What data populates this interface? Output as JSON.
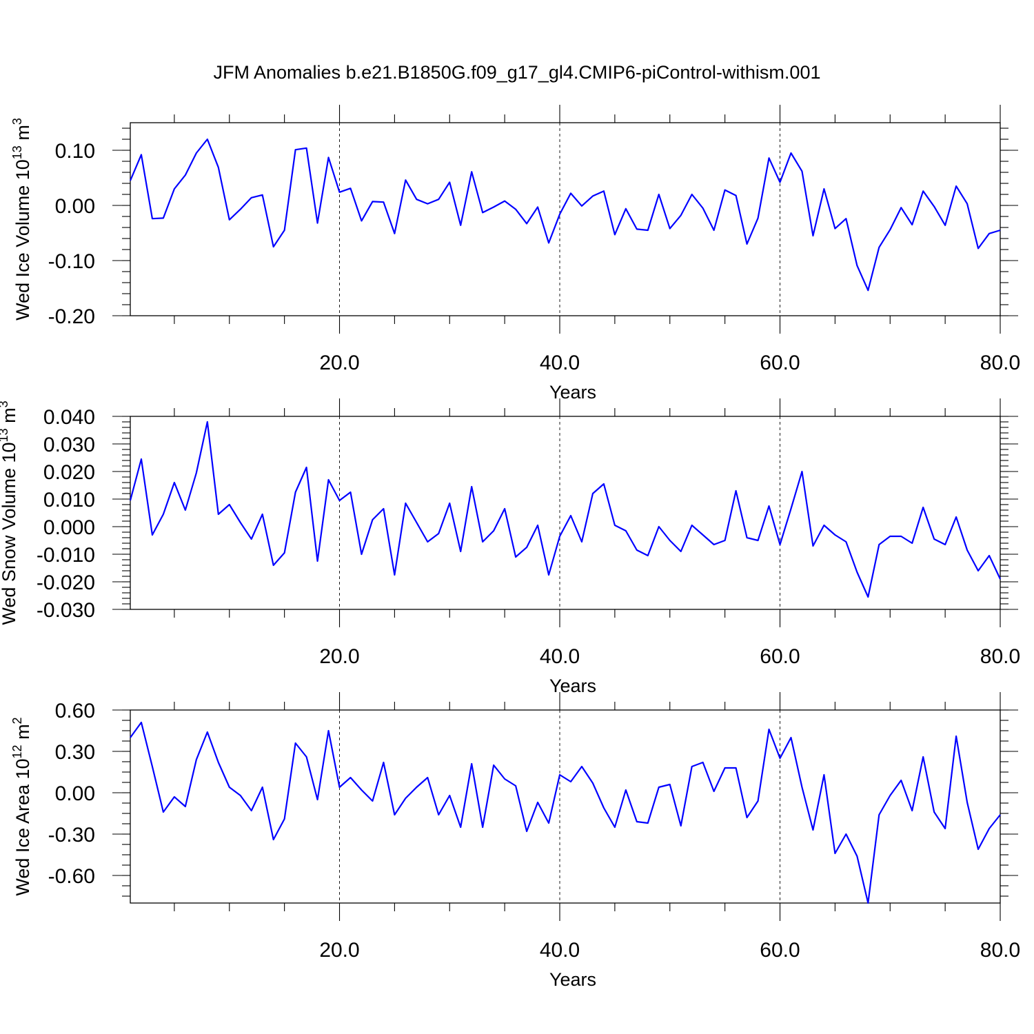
{
  "colors": {
    "series": "#0000ff",
    "axes": "#000000",
    "background": "#ffffff"
  },
  "chart_data": {
    "title": "JFM Anomalies b.e21.B1850G.f09_g17_gl4.CMIP6-piControl-withism.001",
    "panels": [
      {
        "type": "line",
        "ylabel_base": "Wed Ice Volume 10",
        "ylabel_exp": "13",
        "ylabel_unit": " m",
        "ylabel_unit_exp": "3",
        "xlabel": "Years",
        "xlim": [
          1,
          80
        ],
        "ylim": [
          -0.2,
          0.15
        ],
        "xticks": [
          20,
          40,
          60,
          80
        ],
        "xtick_labels": [
          "20.0",
          "40.0",
          "60.0",
          "80.0"
        ],
        "yticks": [
          -0.2,
          -0.1,
          0.0,
          0.1
        ],
        "ytick_labels": [
          "-0.20",
          "-0.10",
          "0.00",
          "0.10"
        ],
        "y_minor_step": 0.02,
        "x_grid": true,
        "x": [
          1,
          2,
          3,
          4,
          5,
          6,
          7,
          8,
          9,
          10,
          11,
          12,
          13,
          14,
          15,
          16,
          17,
          18,
          19,
          20,
          21,
          22,
          23,
          24,
          25,
          26,
          27,
          28,
          29,
          30,
          31,
          32,
          33,
          34,
          35,
          36,
          37,
          38,
          39,
          40,
          41,
          42,
          43,
          44,
          45,
          46,
          47,
          48,
          49,
          50,
          51,
          52,
          53,
          54,
          55,
          56,
          57,
          58,
          59,
          60,
          61,
          62,
          63,
          64,
          65,
          66,
          67,
          68,
          69,
          70,
          71,
          72,
          73,
          74,
          75,
          76,
          77,
          78,
          79,
          80
        ],
        "values": [
          0.045,
          0.092,
          -0.024,
          -0.023,
          0.03,
          0.055,
          0.095,
          0.12,
          0.069,
          -0.026,
          -0.007,
          0.014,
          0.019,
          -0.075,
          -0.045,
          0.101,
          0.104,
          -0.032,
          0.087,
          0.024,
          0.031,
          -0.028,
          0.007,
          0.006,
          -0.051,
          0.046,
          0.011,
          0.003,
          0.011,
          0.042,
          -0.036,
          0.061,
          -0.013,
          -0.003,
          0.008,
          -0.007,
          -0.033,
          -0.003,
          -0.068,
          -0.016,
          0.022,
          -0.001,
          0.017,
          0.026,
          -0.053,
          -0.006,
          -0.043,
          -0.045,
          0.02,
          -0.042,
          -0.018,
          0.02,
          -0.005,
          -0.045,
          0.028,
          0.018,
          -0.07,
          -0.023,
          0.086,
          0.042,
          0.095,
          0.062,
          -0.055,
          0.03,
          -0.042,
          -0.024,
          -0.109,
          -0.154,
          -0.076,
          -0.044,
          -0.004,
          -0.035,
          0.026,
          -0.002,
          -0.036,
          0.035,
          0.003,
          -0.078,
          -0.051,
          -0.045
        ]
      },
      {
        "type": "line",
        "ylabel_base": "Wed Snow Volume 10",
        "ylabel_exp": "13",
        "ylabel_unit": " m",
        "ylabel_unit_exp": "3",
        "xlabel": "Years",
        "xlim": [
          1,
          80
        ],
        "ylim": [
          -0.03,
          0.04
        ],
        "xticks": [
          20,
          40,
          60,
          80
        ],
        "xtick_labels": [
          "20.0",
          "40.0",
          "60.0",
          "80.0"
        ],
        "yticks": [
          -0.03,
          -0.02,
          -0.01,
          0.0,
          0.01,
          0.02,
          0.03,
          0.04
        ],
        "ytick_labels": [
          "-0.030",
          "-0.020",
          "-0.010",
          "0.000",
          "0.010",
          "0.020",
          "0.030",
          "0.040"
        ],
        "y_minor_step": 0.002,
        "x_grid": true,
        "x": [
          1,
          2,
          3,
          4,
          5,
          6,
          7,
          8,
          9,
          10,
          11,
          12,
          13,
          14,
          15,
          16,
          17,
          18,
          19,
          20,
          21,
          22,
          23,
          24,
          25,
          26,
          27,
          28,
          29,
          30,
          31,
          32,
          33,
          34,
          35,
          36,
          37,
          38,
          39,
          40,
          41,
          42,
          43,
          44,
          45,
          46,
          47,
          48,
          49,
          50,
          51,
          52,
          53,
          54,
          55,
          56,
          57,
          58,
          59,
          60,
          61,
          62,
          63,
          64,
          65,
          66,
          67,
          68,
          69,
          70,
          71,
          72,
          73,
          74,
          75,
          76,
          77,
          78,
          79,
          80
        ],
        "values": [
          0.0095,
          0.0245,
          -0.003,
          0.0045,
          0.016,
          0.006,
          0.0195,
          0.038,
          0.0045,
          0.008,
          0.0015,
          -0.0045,
          0.0045,
          -0.014,
          -0.0095,
          0.0125,
          0.0215,
          -0.0125,
          0.017,
          0.0095,
          0.0125,
          -0.01,
          0.0025,
          0.0065,
          -0.0175,
          0.0085,
          0.0015,
          -0.0055,
          -0.0025,
          0.0085,
          -0.009,
          0.0145,
          -0.0055,
          -0.0015,
          0.0065,
          -0.011,
          -0.0075,
          0.0005,
          -0.0175,
          -0.0035,
          0.004,
          -0.0055,
          0.012,
          0.0155,
          0.0005,
          -0.0015,
          -0.0085,
          -0.0105,
          0.0,
          -0.005,
          -0.009,
          0.0005,
          -0.003,
          -0.0065,
          -0.005,
          0.013,
          -0.004,
          -0.005,
          0.0075,
          -0.0065,
          0.0065,
          0.02,
          -0.007,
          0.0005,
          -0.003,
          -0.0055,
          -0.0165,
          -0.0255,
          -0.0065,
          -0.0035,
          -0.0035,
          -0.006,
          0.007,
          -0.0045,
          -0.0065,
          0.0035,
          -0.0085,
          -0.016,
          -0.0105,
          -0.019
        ]
      },
      {
        "type": "line",
        "ylabel_base": "Wed Ice Area 10",
        "ylabel_exp": "12",
        "ylabel_unit": " m",
        "ylabel_unit_exp": "2",
        "xlabel": "Years",
        "xlim": [
          1,
          80
        ],
        "ylim": [
          -0.8,
          0.6
        ],
        "xticks": [
          20,
          40,
          60,
          80
        ],
        "xtick_labels": [
          "20.0",
          "40.0",
          "60.0",
          "80.0"
        ],
        "yticks": [
          -0.6,
          -0.3,
          0.0,
          0.3,
          0.6
        ],
        "ytick_labels": [
          "-0.60",
          "-0.30",
          "0.00",
          "0.30",
          "0.60"
        ],
        "y_minor_step": 0.075,
        "x_grid": true,
        "x": [
          1,
          2,
          3,
          4,
          5,
          6,
          7,
          8,
          9,
          10,
          11,
          12,
          13,
          14,
          15,
          16,
          17,
          18,
          19,
          20,
          21,
          22,
          23,
          24,
          25,
          26,
          27,
          28,
          29,
          30,
          31,
          32,
          33,
          34,
          35,
          36,
          37,
          38,
          39,
          40,
          41,
          42,
          43,
          44,
          45,
          46,
          47,
          48,
          49,
          50,
          51,
          52,
          53,
          54,
          55,
          56,
          57,
          58,
          59,
          60,
          61,
          62,
          63,
          64,
          65,
          66,
          67,
          68,
          69,
          70,
          71,
          72,
          73,
          74,
          75,
          76,
          77,
          78,
          79,
          80
        ],
        "values": [
          0.4,
          0.51,
          0.19,
          -0.14,
          -0.03,
          -0.1,
          0.24,
          0.44,
          0.22,
          0.04,
          -0.02,
          -0.13,
          0.04,
          -0.34,
          -0.19,
          0.36,
          0.26,
          -0.05,
          0.45,
          0.04,
          0.11,
          0.02,
          -0.06,
          0.22,
          -0.16,
          -0.04,
          0.04,
          0.11,
          -0.16,
          -0.02,
          -0.25,
          0.21,
          -0.25,
          0.2,
          0.1,
          0.05,
          -0.28,
          -0.07,
          -0.22,
          0.13,
          0.08,
          0.19,
          0.07,
          -0.11,
          -0.25,
          0.02,
          -0.21,
          -0.22,
          0.04,
          0.06,
          -0.24,
          0.19,
          0.22,
          0.01,
          0.18,
          0.18,
          -0.18,
          -0.06,
          0.46,
          0.25,
          0.4,
          0.04,
          -0.27,
          0.13,
          -0.44,
          -0.3,
          -0.46,
          -0.8,
          -0.16,
          -0.02,
          0.09,
          -0.13,
          0.26,
          -0.14,
          -0.26,
          0.41,
          -0.07,
          -0.41,
          -0.26,
          -0.16
        ]
      }
    ]
  }
}
